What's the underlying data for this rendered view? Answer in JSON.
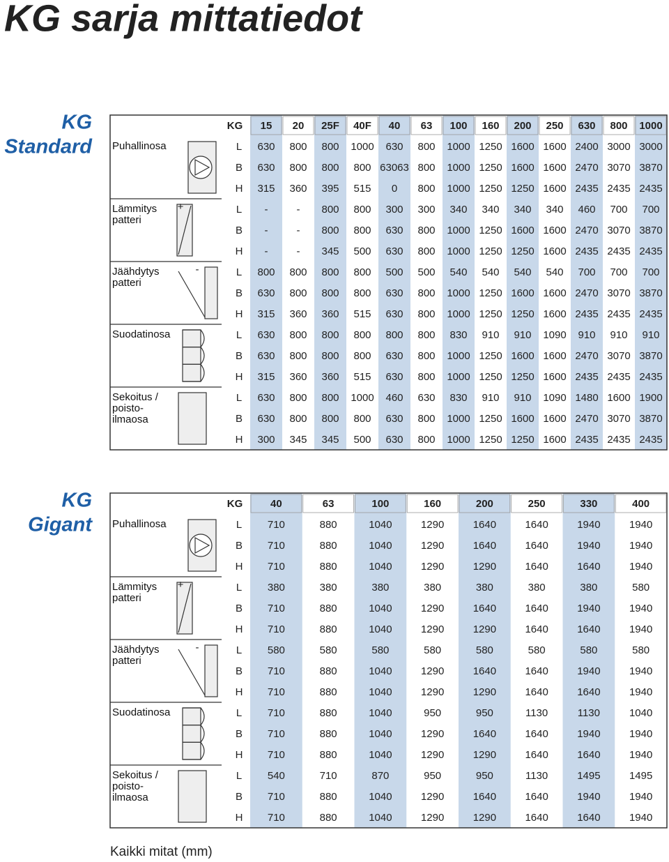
{
  "title": "KG sarja mittatiedot",
  "sections": [
    {
      "label": [
        "KG",
        "Standard"
      ],
      "header": [
        "KG",
        "15",
        "20",
        "25F",
        "40F",
        "40",
        "63",
        "100",
        "160",
        "200",
        "250",
        "630",
        "800",
        "1000"
      ],
      "groups": [
        {
          "name": [
            "Puhallinosa"
          ],
          "rows": [
            [
              "L",
              "630",
              "800",
              "800",
              "1000",
              "630",
              "800",
              "1000",
              "1250",
              "1600",
              "1600",
              "2400",
              "3000",
              "3000"
            ],
            [
              "B",
              "630",
              "800",
              "800",
              "800",
              "63063",
              "800",
              "1000",
              "1250",
              "1600",
              "1600",
              "2470",
              "3070",
              "3870"
            ],
            [
              "H",
              "315",
              "360",
              "395",
              "515",
              "0",
              "800",
              "1000",
              "1250",
              "1250",
              "1600",
              "2435",
              "2435",
              "2435"
            ]
          ]
        },
        {
          "name": [
            "Lämmitys",
            "patteri"
          ],
          "sign": "+",
          "rows": [
            [
              "L",
              "-",
              "-",
              "800",
              "800",
              "300",
              "300",
              "340",
              "340",
              "340",
              "340",
              "460",
              "700",
              "700"
            ],
            [
              "B",
              "-",
              "-",
              "800",
              "800",
              "630",
              "800",
              "1000",
              "1250",
              "1600",
              "1600",
              "2470",
              "3070",
              "3870"
            ],
            [
              "H",
              "-",
              "-",
              "345",
              "500",
              "630",
              "800",
              "1000",
              "1250",
              "1250",
              "1600",
              "2435",
              "2435",
              "2435"
            ]
          ]
        },
        {
          "name": [
            "Jäähdytys",
            "patteri"
          ],
          "sign": "-",
          "rows": [
            [
              "L",
              "800",
              "800",
              "800",
              "800",
              "500",
              "500",
              "540",
              "540",
              "540",
              "540",
              "700",
              "700",
              "700"
            ],
            [
              "B",
              "630",
              "800",
              "800",
              "800",
              "630",
              "800",
              "1000",
              "1250",
              "1600",
              "1600",
              "2470",
              "3070",
              "3870"
            ],
            [
              "H",
              "315",
              "360",
              "360",
              "515",
              "630",
              "800",
              "1000",
              "1250",
              "1250",
              "1600",
              "2435",
              "2435",
              "2435"
            ]
          ]
        },
        {
          "name": [
            "Suodatinosa"
          ],
          "rows": [
            [
              "L",
              "630",
              "800",
              "800",
              "800",
              "800",
              "800",
              "830",
              "910",
              "910",
              "1090",
              "910",
              "910",
              "910"
            ],
            [
              "B",
              "630",
              "800",
              "800",
              "800",
              "630",
              "800",
              "1000",
              "1250",
              "1600",
              "1600",
              "2470",
              "3070",
              "3870"
            ],
            [
              "H",
              "315",
              "360",
              "360",
              "515",
              "630",
              "800",
              "1000",
              "1250",
              "1250",
              "1600",
              "2435",
              "2435",
              "2435"
            ]
          ]
        },
        {
          "name": [
            "Sekoitus /",
            "poisto-",
            "ilmaosa"
          ],
          "rows": [
            [
              "L",
              "630",
              "800",
              "800",
              "1000",
              "460",
              "630",
              "830",
              "910",
              "910",
              "1090",
              "1480",
              "1600",
              "1900"
            ],
            [
              "B",
              "630",
              "800",
              "800",
              "800",
              "630",
              "800",
              "1000",
              "1250",
              "1600",
              "1600",
              "2470",
              "3070",
              "3870"
            ],
            [
              "H",
              "300",
              "345",
              "345",
              "500",
              "630",
              "800",
              "1000",
              "1250",
              "1250",
              "1600",
              "2435",
              "2435",
              "2435"
            ]
          ]
        }
      ]
    },
    {
      "label": [
        "KG",
        "Gigant"
      ],
      "header": [
        "KG",
        "40",
        "63",
        "100",
        "160",
        "200",
        "250",
        "330",
        "400"
      ],
      "groups": [
        {
          "name": [
            "Puhallinosa"
          ],
          "rows": [
            [
              "L",
              "710",
              "880",
              "1040",
              "1290",
              "1640",
              "1640",
              "1940",
              "1940"
            ],
            [
              "B",
              "710",
              "880",
              "1040",
              "1290",
              "1640",
              "1640",
              "1940",
              "1940"
            ],
            [
              "H",
              "710",
              "880",
              "1040",
              "1290",
              "1290",
              "1640",
              "1640",
              "1940"
            ]
          ]
        },
        {
          "name": [
            "Lämmitys",
            "patteri"
          ],
          "sign": "+",
          "rows": [
            [
              "L",
              "380",
              "380",
              "380",
              "380",
              "380",
              "380",
              "380",
              "580"
            ],
            [
              "B",
              "710",
              "880",
              "1040",
              "1290",
              "1640",
              "1640",
              "1940",
              "1940"
            ],
            [
              "H",
              "710",
              "880",
              "1040",
              "1290",
              "1290",
              "1640",
              "1640",
              "1940"
            ]
          ]
        },
        {
          "name": [
            "Jäähdytys",
            "patteri"
          ],
          "sign": "-",
          "rows": [
            [
              "L",
              "580",
              "580",
              "580",
              "580",
              "580",
              "580",
              "580",
              "580"
            ],
            [
              "B",
              "710",
              "880",
              "1040",
              "1290",
              "1640",
              "1640",
              "1940",
              "1940"
            ],
            [
              "H",
              "710",
              "880",
              "1040",
              "1290",
              "1290",
              "1640",
              "1640",
              "1940"
            ]
          ]
        },
        {
          "name": [
            "Suodatinosa"
          ],
          "rows": [
            [
              "L",
              "710",
              "880",
              "1040",
              "950",
              "950",
              "1130",
              "1130",
              "1040"
            ],
            [
              "B",
              "710",
              "880",
              "1040",
              "1290",
              "1640",
              "1640",
              "1940",
              "1940"
            ],
            [
              "H",
              "710",
              "880",
              "1040",
              "1290",
              "1290",
              "1640",
              "1640",
              "1940"
            ]
          ]
        },
        {
          "name": [
            "Sekoitus /",
            "poisto-",
            "ilmaosa"
          ],
          "rows": [
            [
              "L",
              "540",
              "710",
              "870",
              "950",
              "950",
              "1130",
              "1495",
              "1495"
            ],
            [
              "B",
              "710",
              "880",
              "1040",
              "1290",
              "1640",
              "1640",
              "1940",
              "1940"
            ],
            [
              "H",
              "710",
              "880",
              "1040",
              "1290",
              "1290",
              "1640",
              "1640",
              "1940"
            ]
          ]
        }
      ]
    }
  ],
  "footer": "Kaikki mitat (mm)"
}
